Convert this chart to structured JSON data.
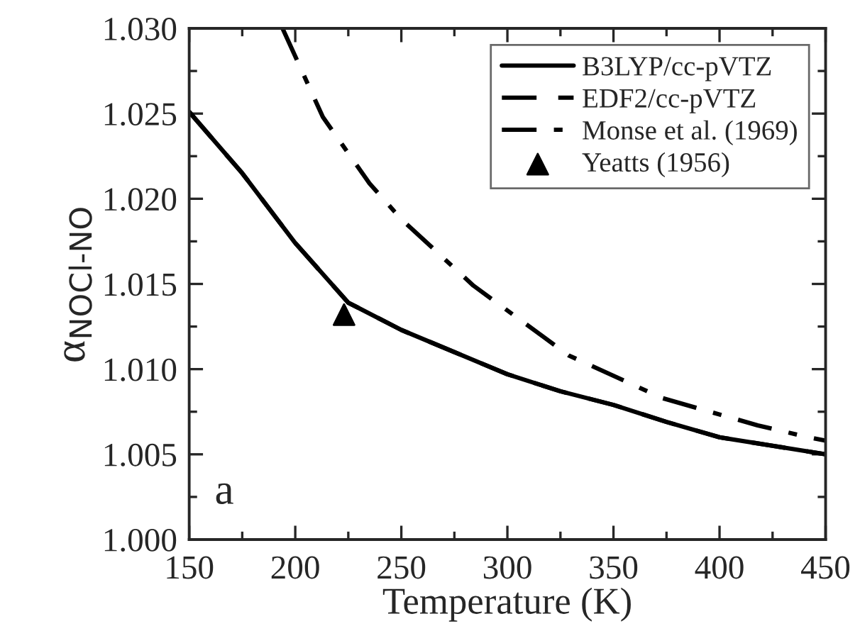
{
  "chart_data": {
    "type": "line",
    "xlabel": "Temperature (K)",
    "ylabel": "α$_{NOCl-NO}$",
    "xlim": [
      150,
      450
    ],
    "ylim": [
      1.0,
      1.03
    ],
    "xticks": [
      150,
      200,
      250,
      300,
      350,
      400,
      450
    ],
    "yticks": [
      {
        "value": 1.0,
        "label": "1.000"
      },
      {
        "value": 1.005,
        "label": "1.005"
      },
      {
        "value": 1.01,
        "label": "1.010"
      },
      {
        "value": 1.015,
        "label": "1.015"
      },
      {
        "value": 1.02,
        "label": "1.020"
      },
      {
        "value": 1.025,
        "label": "1.025"
      },
      {
        "value": 1.03,
        "label": "1.030"
      }
    ],
    "grid": false,
    "legend": "top right",
    "annotations": [
      "a"
    ],
    "series": [
      {
        "name": "B3LYP/cc-pVTZ",
        "color": "#000000",
        "line_style": "solid",
        "marker": "none",
        "x": [
          150,
          175,
          200,
          225,
          250,
          275,
          300,
          325,
          350,
          375,
          400,
          425,
          450
        ],
        "values": [
          1.0251,
          1.0215,
          1.0174,
          1.0139,
          1.0123,
          1.011,
          1.0097,
          1.0087,
          1.0079,
          1.0069,
          1.006,
          1.0055,
          1.005
        ]
      },
      {
        "name": "EDF2/cc-pVTZ",
        "color": "#000000",
        "line_style": "dashed",
        "marker": "none",
        "x": [
          150,
          175,
          200,
          225,
          250,
          275,
          300,
          325,
          350,
          375,
          400,
          425,
          450
        ],
        "values": [
          1.0251,
          1.0215,
          1.0174,
          1.0139,
          1.0123,
          1.011,
          1.0097,
          1.0087,
          1.0079,
          1.0069,
          1.006,
          1.0055,
          1.005
        ]
      },
      {
        "name": "Monse et al. (1969)",
        "color": "#000000",
        "line_style": "dashdot",
        "marker": "none",
        "x": [
          194,
          213,
          235,
          250,
          284,
          329,
          373,
          418,
          442,
          450
        ],
        "values": [
          1.03,
          1.0248,
          1.0209,
          1.0188,
          1.0149,
          1.0108,
          1.0083,
          1.0067,
          1.006,
          1.0058
        ]
      },
      {
        "name": "Yeatts (1956)",
        "type": "scatter",
        "color": "#000000",
        "marker": "triangle",
        "x": [
          223
        ],
        "values": [
          1.0132
        ]
      }
    ]
  }
}
